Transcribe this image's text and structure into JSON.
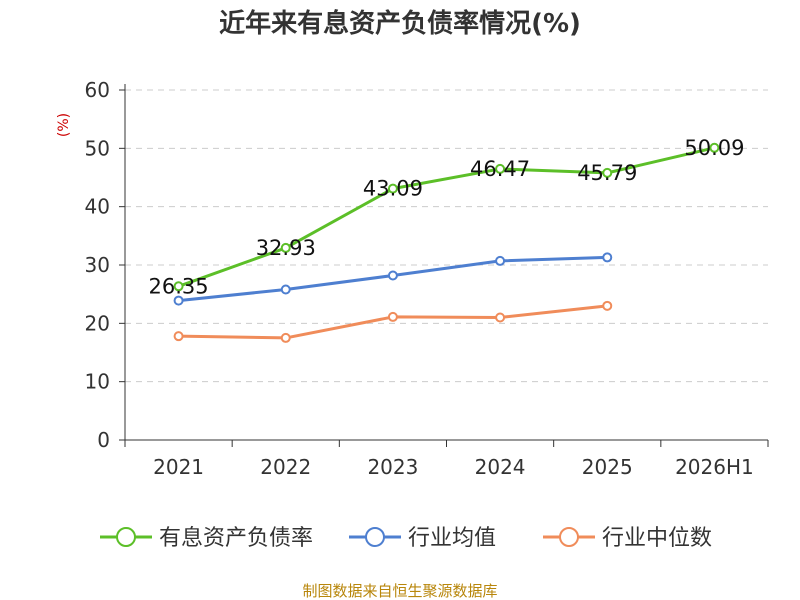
{
  "chart_data": {
    "type": "line",
    "title": "近年来有息资产负债率情况(%)",
    "y_unit": "(%)",
    "ylim": [
      0,
      60
    ],
    "yticks": [
      0,
      10,
      20,
      30,
      40,
      50,
      60
    ],
    "categories": [
      "2021",
      "2022",
      "2023",
      "2024",
      "2025",
      "2026H1"
    ],
    "grid": true,
    "legend_position": "bottom",
    "series": [
      {
        "name": "有息资产负债率",
        "color": "#5cbf28",
        "values": [
          26.35,
          32.93,
          43.09,
          46.47,
          45.79,
          50.09
        ],
        "show_labels": true
      },
      {
        "name": "行业均值",
        "color": "#4e7fd0",
        "values": [
          23.9,
          25.8,
          28.2,
          30.7,
          31.3,
          null
        ],
        "show_labels": false
      },
      {
        "name": "行业中位数",
        "color": "#f08c5a",
        "values": [
          17.8,
          17.5,
          21.1,
          21.0,
          23.0,
          null
        ],
        "show_labels": false
      }
    ],
    "source": "制图数据来自恒生聚源数据库"
  }
}
